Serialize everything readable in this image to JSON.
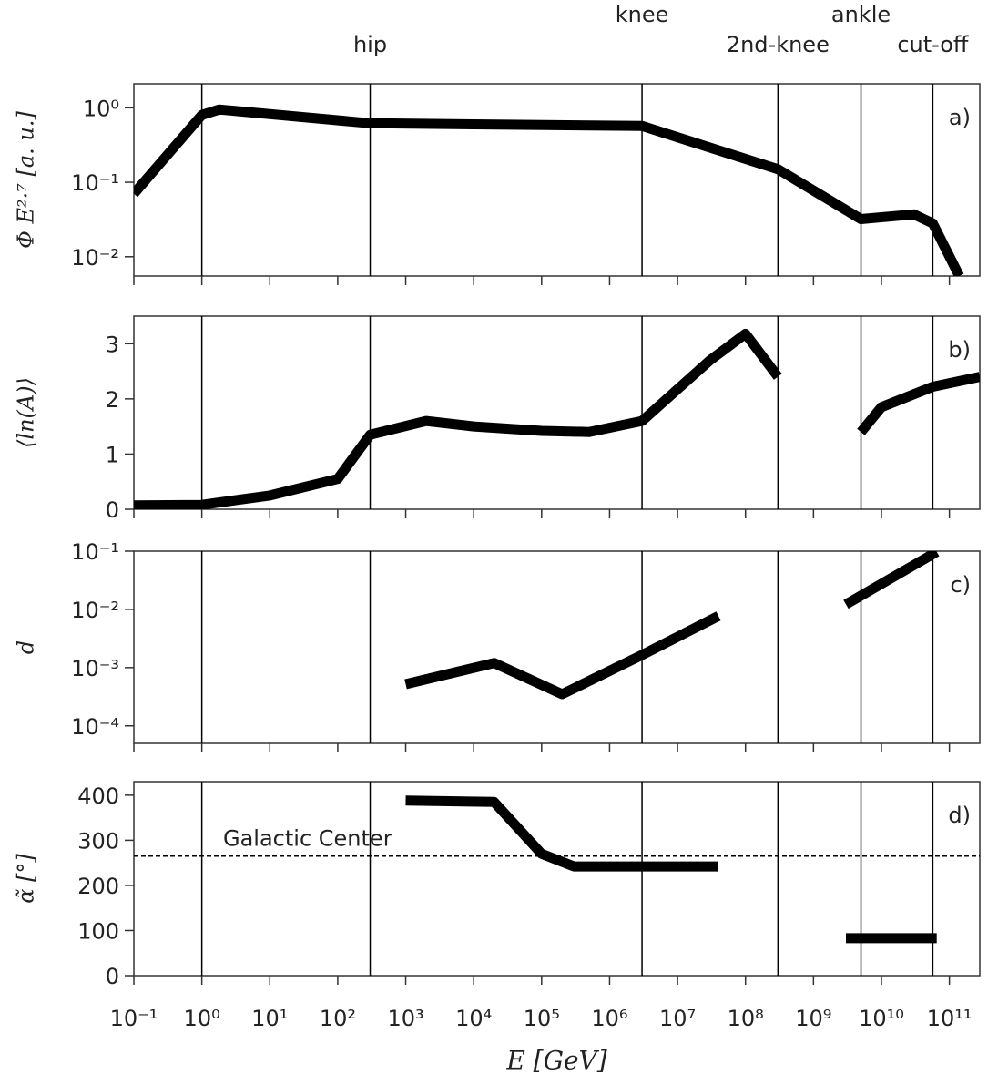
{
  "chart_data": [
    {
      "type": "line",
      "ylabel": "Φ E²·⁷ [a. u.]",
      "panel_label": "a)",
      "yscale": "log",
      "ylim": [
        0.0055,
        2.1
      ],
      "yticks": [
        {
          "value": 0.01,
          "label": "10⁻²"
        },
        {
          "value": 0.1,
          "label": "10⁻¹"
        },
        {
          "value": 1,
          "label": "10⁰"
        }
      ],
      "xlim": [
        0.1,
        280000000000
      ],
      "xticks": [
        0.1,
        1,
        10,
        100,
        1000,
        10000,
        100000,
        1000000,
        10000000,
        100000000,
        1000000000,
        10000000000,
        100000000000
      ],
      "vlines": [
        1,
        300,
        3000000,
        300000000,
        5000000000,
        57000000000
      ],
      "vline_labels": [
        null,
        "hip",
        "knee",
        "2nd-knee",
        "ankle",
        "cut-off"
      ],
      "x": [
        0.1,
        1,
        1.8,
        300,
        10000,
        3000000,
        300000000,
        5000000000,
        30000000000,
        57000000000,
        140000000000
      ],
      "series": [
        {
          "color": "#000000",
          "values": [
            0.07,
            0.8,
            0.95,
            0.62,
            0.6,
            0.57,
            0.15,
            0.032,
            0.037,
            0.028,
            0.0055
          ]
        }
      ]
    },
    {
      "type": "line",
      "ylabel": "⟨ln(A)⟩",
      "panel_label": "b)",
      "yscale": "linear",
      "ylim": [
        0,
        3.5
      ],
      "yticks": [
        0,
        1,
        2,
        3
      ],
      "xlim": [
        0.1,
        280000000000
      ],
      "xticks": [
        0.1,
        1,
        10,
        100,
        1000,
        10000,
        100000,
        1000000,
        10000000,
        100000000,
        1000000000,
        10000000000,
        100000000000
      ],
      "vlines": [
        1,
        300,
        3000000,
        300000000,
        5000000000,
        57000000000
      ],
      "x": [
        0.1,
        1,
        10,
        100,
        300,
        2000,
        10000,
        100000,
        500000,
        3000000,
        30000000,
        100000000,
        300000000,
        1000000000,
        5000000000,
        10000000000,
        57000000000,
        280000000000
      ],
      "series": [
        {
          "color": "#000000",
          "values": [
            0.07,
            0.08,
            0.25,
            0.55,
            1.35,
            1.6,
            1.5,
            1.42,
            1.4,
            1.6,
            2.7,
            3.18,
            2.4,
            null,
            1.4,
            1.85,
            2.22,
            2.4
          ]
        }
      ]
    },
    {
      "type": "line",
      "ylabel": "d",
      "panel_label": "c)",
      "yscale": "log",
      "ylim": [
        5e-05,
        0.1
      ],
      "yticks": [
        {
          "value": 0.0001,
          "label": "10⁻⁴"
        },
        {
          "value": 0.001,
          "label": "10⁻³"
        },
        {
          "value": 0.01,
          "label": "10⁻²"
        },
        {
          "value": 0.1,
          "label": "10⁻¹"
        }
      ],
      "xlim": [
        0.1,
        280000000000
      ],
      "xticks": [
        0.1,
        1,
        10,
        100,
        1000,
        10000,
        100000,
        1000000,
        10000000,
        100000000,
        1000000000,
        10000000000,
        100000000000
      ],
      "vlines": [
        1,
        300,
        3000000,
        300000000,
        5000000000,
        57000000000
      ],
      "x": [
        1000,
        20000,
        200000,
        3000000,
        40000000,
        1000000000,
        3000000000,
        65000000000
      ],
      "series": [
        {
          "color": "#000000",
          "values": [
            0.00052,
            0.0012,
            0.00035,
            0.00165,
            0.0077,
            null,
            0.0122,
            0.097
          ]
        }
      ]
    },
    {
      "type": "line",
      "ylabel": "α̃ [°]",
      "panel_label": "d)",
      "yscale": "linear",
      "ylim": [
        0,
        430
      ],
      "yticks": [
        0,
        100,
        200,
        300,
        400
      ],
      "xlim": [
        0.1,
        280000000000
      ],
      "xticks": [
        {
          "value": 0.1,
          "label": "10⁻¹"
        },
        {
          "value": 1,
          "label": "10⁰"
        },
        {
          "value": 10,
          "label": "10¹"
        },
        {
          "value": 100,
          "label": "10²"
        },
        {
          "value": 1000,
          "label": "10³"
        },
        {
          "value": 10000,
          "label": "10⁴"
        },
        {
          "value": 100000,
          "label": "10⁵"
        },
        {
          "value": 1000000,
          "label": "10⁶"
        },
        {
          "value": 10000000,
          "label": "10⁷"
        },
        {
          "value": 100000000,
          "label": "10⁸"
        },
        {
          "value": 1000000000,
          "label": "10⁹"
        },
        {
          "value": 10000000000,
          "label": "10¹⁰"
        },
        {
          "value": 100000000000,
          "label": "10¹¹"
        }
      ],
      "xlabel": "E [GeV]",
      "vlines": [
        1,
        300,
        3000000,
        300000000,
        5000000000,
        57000000000
      ],
      "hline": {
        "value": 265,
        "label": "Galactic Center"
      },
      "x": [
        1000,
        20000,
        100000,
        300000,
        40000000,
        1000000000,
        3000000000,
        65000000000
      ],
      "series": [
        {
          "color": "#000000",
          "values": [
            388,
            385,
            270,
            242,
            242,
            null,
            83,
            83
          ]
        }
      ]
    }
  ]
}
